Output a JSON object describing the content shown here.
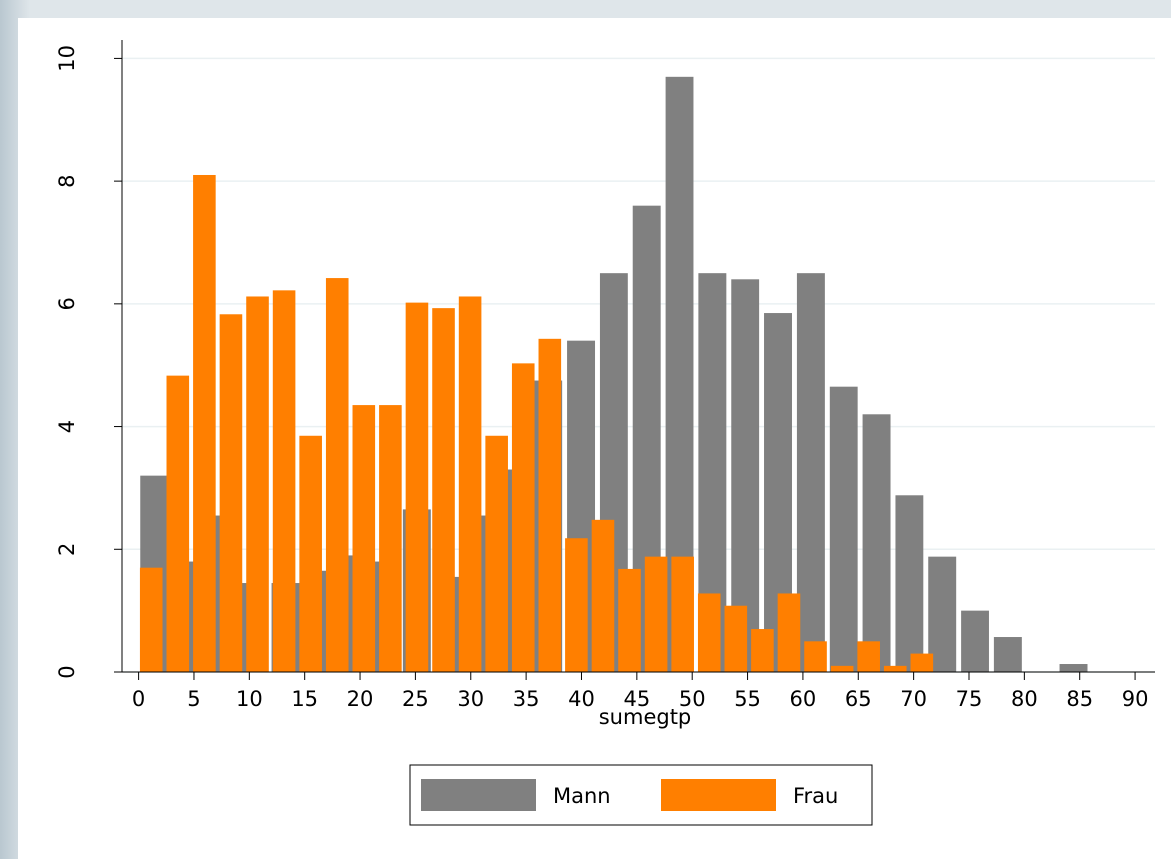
{
  "chart_data": {
    "type": "histogram",
    "x_label": "sumegtp",
    "xlim": [
      -1.5,
      91.8
    ],
    "ylim": [
      0,
      10.3
    ],
    "xticks": [
      0,
      5,
      10,
      15,
      20,
      25,
      30,
      35,
      40,
      45,
      50,
      55,
      60,
      65,
      70,
      75,
      80,
      85,
      90
    ],
    "yticks": [
      0,
      2,
      4,
      6,
      8,
      10
    ],
    "grid": true,
    "legend": "bottom",
    "series": [
      {
        "name": "Mann",
        "color": "#808080",
        "bins": [
          0,
          2.97,
          5.93,
          8.9,
          11.86,
          14.83,
          17.79,
          20.76,
          23.72,
          26.69,
          29.66,
          32.62,
          35.59,
          38.55,
          41.52,
          44.48,
          47.45,
          50.41,
          53.38,
          56.34,
          59.31,
          62.28,
          65.24,
          68.21,
          71.17,
          74.14,
          77.1,
          80.07,
          83.03,
          86
        ],
        "values": [
          3.2,
          1.8,
          2.55,
          1.45,
          1.45,
          1.65,
          1.9,
          1.8,
          2.65,
          1.55,
          2.55,
          3.3,
          4.75,
          5.4,
          6.5,
          7.6,
          9.7,
          6.5,
          6.4,
          5.85,
          6.5,
          4.65,
          4.2,
          2.88,
          1.88,
          1.0,
          0.57,
          0,
          0.13
        ]
      },
      {
        "name": "Frau",
        "color": "#ff7f00",
        "bins": [
          0,
          2.4,
          4.8,
          7.2,
          9.6,
          12,
          14.4,
          16.8,
          19.2,
          21.6,
          24,
          26.4,
          28.8,
          31.2,
          33.6,
          36,
          38.4,
          40.8,
          43.2,
          45.6,
          48,
          50.4,
          52.8,
          55.2,
          57.6,
          60,
          62.4,
          64.8,
          67.2,
          69.6,
          72
        ],
        "values": [
          1.7,
          4.83,
          8.1,
          5.83,
          6.12,
          6.22,
          3.85,
          6.42,
          4.35,
          4.35,
          6.02,
          5.93,
          6.12,
          3.85,
          5.03,
          5.43,
          2.18,
          2.48,
          1.68,
          1.88,
          1.88,
          1.28,
          1.08,
          0.7,
          1.28,
          0.5,
          0.1,
          0.5,
          0.1,
          0.3
        ]
      }
    ]
  }
}
